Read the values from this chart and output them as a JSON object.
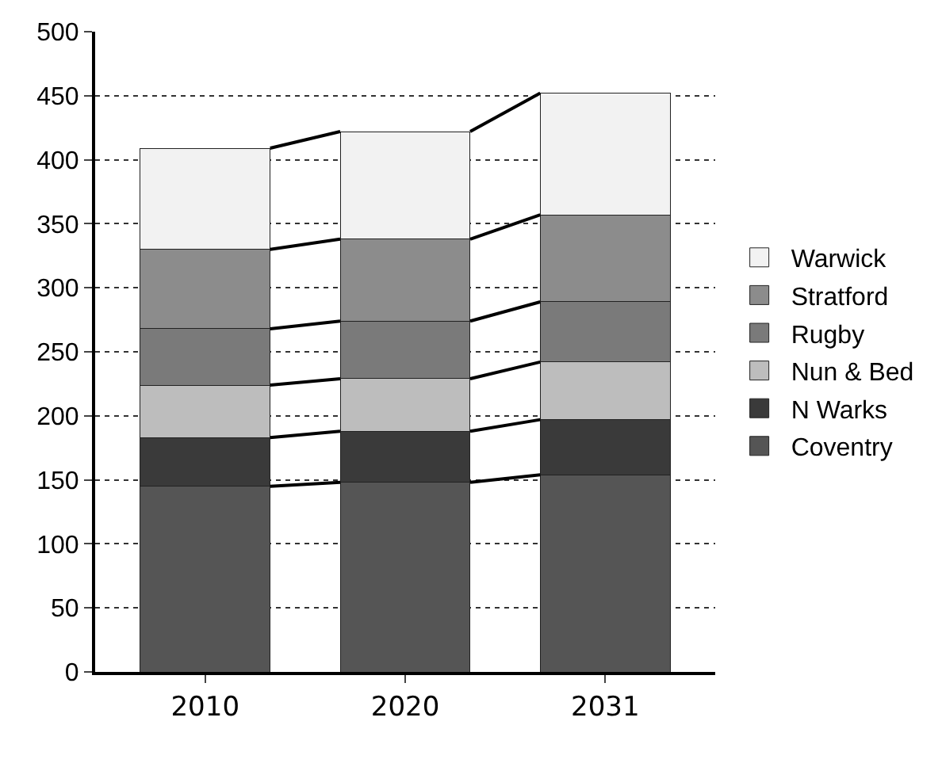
{
  "chart_data": {
    "type": "bar",
    "stacked": true,
    "categories": [
      "2010",
      "2020",
      "2031"
    ],
    "series": [
      {
        "name": "Coventry",
        "color": "#555555",
        "values": [
          145,
          148,
          154
        ]
      },
      {
        "name": "N Warks",
        "color": "#3a3a3a",
        "values": [
          38,
          40,
          43
        ]
      },
      {
        "name": "Nun & Bed",
        "color": "#bdbdbd",
        "values": [
          41,
          41,
          45
        ]
      },
      {
        "name": "Rugby",
        "color": "#7a7a7a",
        "values": [
          44,
          45,
          47
        ]
      },
      {
        "name": "Stratford",
        "color": "#8c8c8c",
        "values": [
          62,
          64,
          68
        ]
      },
      {
        "name": "Warwick",
        "color": "#f2f2f2",
        "values": [
          79,
          84,
          95
        ]
      }
    ],
    "ylim": [
      0,
      500
    ],
    "yticks": [
      0,
      50,
      100,
      150,
      200,
      250,
      300,
      350,
      400,
      450,
      500
    ],
    "grid": "y",
    "legend": "right"
  }
}
